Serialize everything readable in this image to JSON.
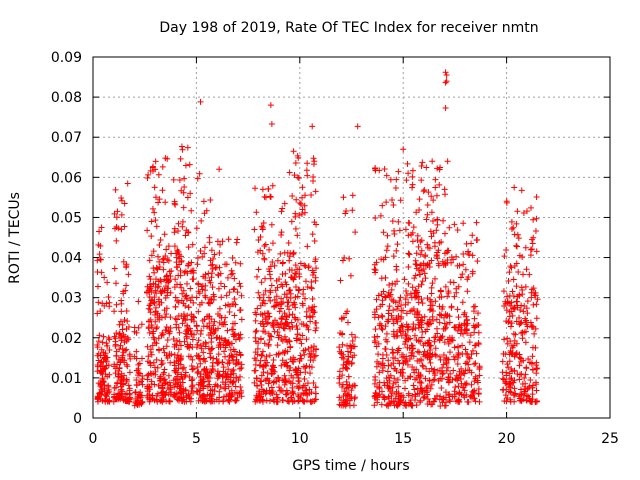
{
  "chart_data": {
    "type": "scatter",
    "title": "Day 198 of 2019, Rate Of TEC Index for receiver nmtn",
    "xlabel": "GPS time / hours",
    "ylabel": "ROTI / TECUs",
    "xlim": [
      0,
      25
    ],
    "ylim": [
      0,
      0.09
    ],
    "x_ticks": [
      "0",
      "5",
      "10",
      "15",
      "20",
      "25"
    ],
    "y_ticks": [
      "0",
      "0.01",
      "0.02",
      "0.03",
      "0.04",
      "0.05",
      "0.06",
      "0.07",
      "0.08",
      "0.09"
    ],
    "grid": true,
    "marker": "+",
    "color": "#ff0000",
    "clusters": [
      {
        "x": [
          0.2,
          0.8
        ],
        "y_dense": [
          0.004,
          0.018
        ],
        "y_sparse": [
          0.018,
          0.048
        ],
        "n": 120
      },
      {
        "x": [
          1.0,
          1.8
        ],
        "y_dense": [
          0.004,
          0.022
        ],
        "y_sparse": [
          0.022,
          0.059
        ],
        "n": 160
      },
      {
        "x": [
          2.0,
          2.4
        ],
        "y_dense": [
          0.003,
          0.013
        ],
        "y_sparse": [
          0.013,
          0.03
        ],
        "n": 50
      },
      {
        "x": [
          2.6,
          3.8
        ],
        "y_dense": [
          0.004,
          0.034
        ],
        "y_sparse": [
          0.034,
          0.065
        ],
        "n": 260
      },
      {
        "x": [
          3.9,
          4.9
        ],
        "y_dense": [
          0.004,
          0.036
        ],
        "y_sparse": [
          0.036,
          0.068
        ],
        "n": 230
      },
      {
        "x": [
          5.0,
          5.8
        ],
        "y_dense": [
          0.004,
          0.03
        ],
        "y_sparse": [
          0.03,
          0.062
        ],
        "n": 170
      },
      {
        "x": [
          5.8,
          7.2
        ],
        "y_dense": [
          0.004,
          0.025
        ],
        "y_sparse": [
          0.025,
          0.045
        ],
        "n": 220
      },
      {
        "x": [
          7.8,
          9.3
        ],
        "y_dense": [
          0.004,
          0.03
        ],
        "y_sparse": [
          0.03,
          0.058
        ],
        "n": 260
      },
      {
        "x": [
          9.3,
          10.8
        ],
        "y_dense": [
          0.004,
          0.035
        ],
        "y_sparse": [
          0.035,
          0.066
        ],
        "n": 280
      },
      {
        "x": [
          11.9,
          12.7
        ],
        "y_dense": [
          0.003,
          0.018
        ],
        "y_sparse": [
          0.018,
          0.058
        ],
        "n": 100
      },
      {
        "x": [
          13.6,
          15.5
        ],
        "y_dense": [
          0.003,
          0.03
        ],
        "y_sparse": [
          0.03,
          0.067
        ],
        "n": 320
      },
      {
        "x": [
          15.5,
          17.2
        ],
        "y_dense": [
          0.003,
          0.038
        ],
        "y_sparse": [
          0.038,
          0.064
        ],
        "n": 330
      },
      {
        "x": [
          17.2,
          18.7
        ],
        "y_dense": [
          0.004,
          0.025
        ],
        "y_sparse": [
          0.025,
          0.05
        ],
        "n": 200
      },
      {
        "x": [
          19.8,
          21.5
        ],
        "y_dense": [
          0.004,
          0.03
        ],
        "y_sparse": [
          0.03,
          0.058
        ],
        "n": 260
      }
    ],
    "outliers": [
      {
        "x": 5.2,
        "y": 0.0788
      },
      {
        "x": 8.6,
        "y": 0.078
      },
      {
        "x": 8.65,
        "y": 0.0733
      },
      {
        "x": 9.7,
        "y": 0.0665
      },
      {
        "x": 10.6,
        "y": 0.0727
      },
      {
        "x": 12.8,
        "y": 0.0727
      },
      {
        "x": 15.0,
        "y": 0.067
      },
      {
        "x": 16.4,
        "y": 0.064
      },
      {
        "x": 17.05,
        "y": 0.0862
      },
      {
        "x": 17.1,
        "y": 0.0855
      },
      {
        "x": 17.1,
        "y": 0.084
      },
      {
        "x": 17.05,
        "y": 0.0836
      },
      {
        "x": 17.05,
        "y": 0.0773
      },
      {
        "x": 17.15,
        "y": 0.064
      },
      {
        "x": 4.3,
        "y": 0.0677
      },
      {
        "x": 3.5,
        "y": 0.0648
      },
      {
        "x": 6.1,
        "y": 0.062
      },
      {
        "x": 10.7,
        "y": 0.064
      }
    ]
  }
}
